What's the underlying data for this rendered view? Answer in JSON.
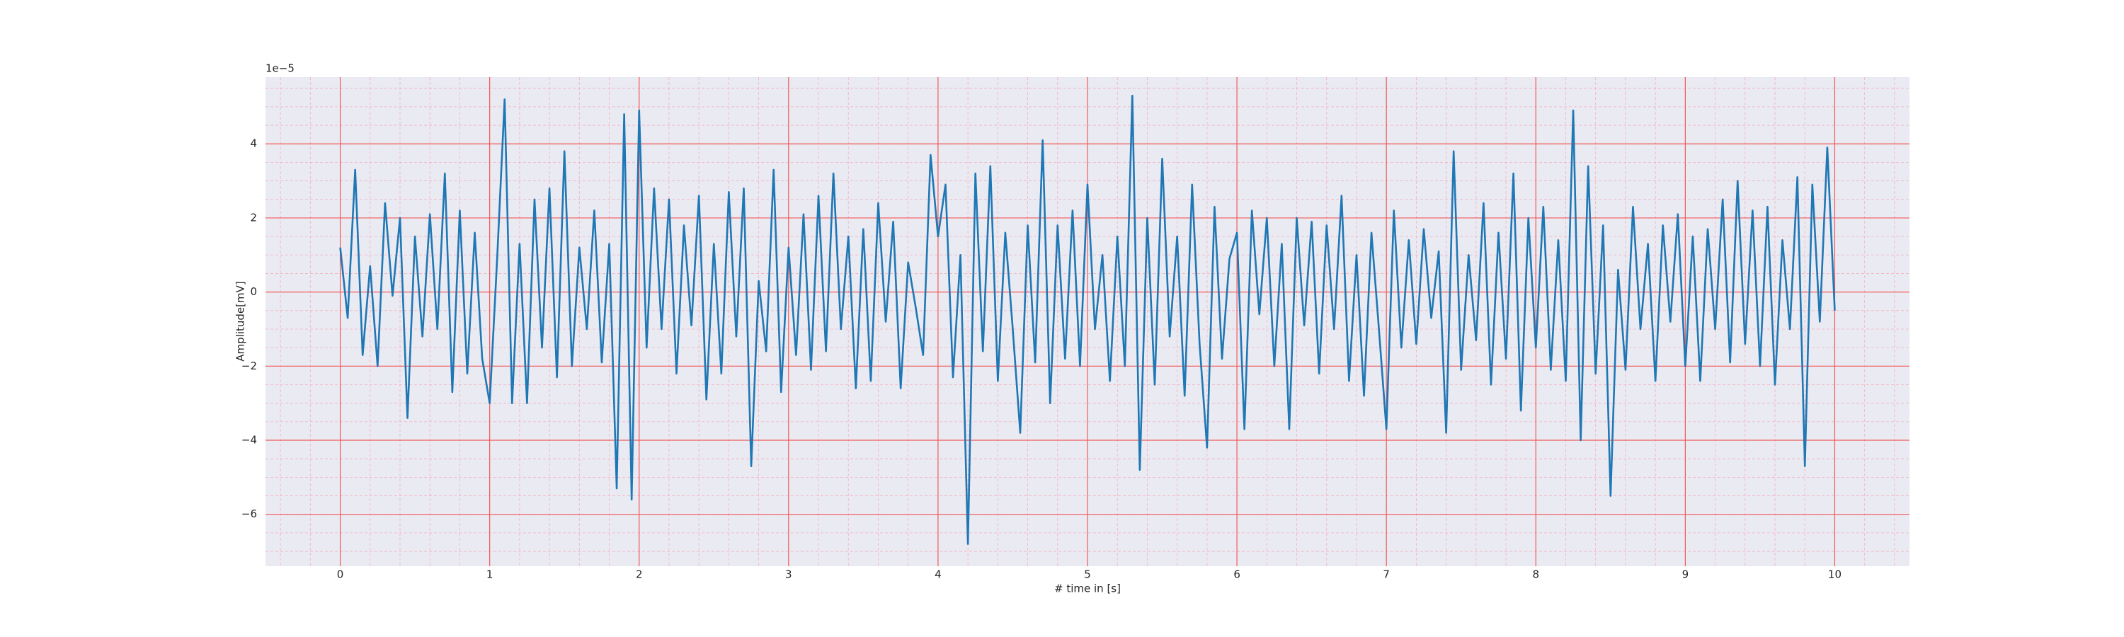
{
  "chart_data": {
    "type": "line",
    "xlabel": "# time in [s]",
    "ylabel": "Amplitude[mV]",
    "y_offset_text": "1e−5",
    "color": "#1f77b4",
    "grid": true,
    "minor_grid": true,
    "xlim": [
      -0.5,
      10.5
    ],
    "ylim": [
      -7.4,
      5.8
    ],
    "xticks": [
      0,
      1,
      2,
      3,
      4,
      5,
      6,
      7,
      8,
      9,
      10
    ],
    "yticks": [
      {
        "value": -6,
        "label": "−6"
      },
      {
        "value": -4,
        "label": "−4"
      },
      {
        "value": -2,
        "label": "−2"
      },
      0,
      2,
      4
    ],
    "x": [
      0,
      0.05,
      0.1,
      0.15,
      0.2,
      0.25,
      0.3,
      0.35,
      0.4,
      0.45,
      0.5,
      0.55,
      0.6,
      0.65,
      0.7,
      0.75,
      0.8,
      0.85,
      0.9,
      0.95,
      1,
      1.05,
      1.1,
      1.15,
      1.2,
      1.25,
      1.3,
      1.35,
      1.4,
      1.45,
      1.5,
      1.55,
      1.6,
      1.65,
      1.7,
      1.75,
      1.8,
      1.85,
      1.9,
      1.95,
      2,
      2.05,
      2.1,
      2.15,
      2.2,
      2.25,
      2.3,
      2.35,
      2.4,
      2.45,
      2.5,
      2.55,
      2.6,
      2.65,
      2.7,
      2.75,
      2.8,
      2.85,
      2.9,
      2.95,
      3,
      3.05,
      3.1,
      3.15,
      3.2,
      3.25,
      3.3,
      3.35,
      3.4,
      3.45,
      3.5,
      3.55,
      3.6,
      3.65,
      3.7,
      3.75,
      3.8,
      3.85,
      3.9,
      3.95,
      4,
      4.05,
      4.1,
      4.15,
      4.2,
      4.25,
      4.3,
      4.35,
      4.4,
      4.45,
      4.5,
      4.55,
      4.6,
      4.65,
      4.7,
      4.75,
      4.8,
      4.85,
      4.9,
      4.95,
      5,
      5.05,
      5.1,
      5.15,
      5.2,
      5.25,
      5.3,
      5.35,
      5.4,
      5.45,
      5.5,
      5.55,
      5.6,
      5.65,
      5.7,
      5.75,
      5.8,
      5.85,
      5.9,
      5.95,
      6,
      6.05,
      6.1,
      6.15,
      6.2,
      6.25,
      6.3,
      6.35,
      6.4,
      6.45,
      6.5,
      6.55,
      6.6,
      6.65,
      6.7,
      6.75,
      6.8,
      6.85,
      6.9,
      6.95,
      7,
      7.05,
      7.1,
      7.15,
      7.2,
      7.25,
      7.3,
      7.35,
      7.4,
      7.45,
      7.5,
      7.55,
      7.6,
      7.65,
      7.7,
      7.75,
      7.8,
      7.85,
      7.9,
      7.95,
      8,
      8.05,
      8.1,
      8.15,
      8.2,
      8.25,
      8.3,
      8.35,
      8.4,
      8.45,
      8.5,
      8.55,
      8.6,
      8.65,
      8.7,
      8.75,
      8.8,
      8.85,
      8.9,
      8.95,
      9,
      9.05,
      9.1,
      9.15,
      9.2,
      9.25,
      9.3,
      9.35,
      9.4,
      9.45,
      9.5,
      9.55,
      9.6,
      9.65,
      9.7,
      9.75,
      9.8,
      9.85,
      9.9,
      9.95,
      10
    ],
    "values": [
      1.2,
      -0.7,
      3.3,
      -1.7,
      0.7,
      -2.0,
      2.4,
      -0.1,
      2.0,
      -3.4,
      1.5,
      -1.2,
      2.1,
      -1.0,
      3.2,
      -2.7,
      2.2,
      -2.2,
      1.6,
      -1.8,
      -3.0,
      0.9,
      5.2,
      -3.0,
      1.3,
      -3.0,
      2.5,
      -1.5,
      2.8,
      -2.3,
      3.8,
      -2.0,
      1.2,
      -1.0,
      2.2,
      -1.9,
      1.3,
      -5.3,
      4.8,
      -5.6,
      4.9,
      -1.5,
      2.8,
      -1.0,
      2.5,
      -2.2,
      1.8,
      -0.9,
      2.6,
      -2.9,
      1.3,
      -2.2,
      2.7,
      -1.2,
      2.8,
      -4.7,
      0.3,
      -1.6,
      3.3,
      -2.7,
      1.2,
      -1.7,
      2.1,
      -2.1,
      2.6,
      -1.6,
      3.2,
      -1.0,
      1.5,
      -2.6,
      1.7,
      -2.4,
      2.4,
      -0.8,
      1.9,
      -2.6,
      0.8,
      -0.4,
      -1.7,
      3.7,
      1.5,
      2.9,
      -2.3,
      1.0,
      -6.8,
      3.2,
      -1.6,
      3.4,
      -2.4,
      1.6,
      -1.0,
      -3.8,
      1.8,
      -1.9,
      4.1,
      -3.0,
      1.8,
      -1.8,
      2.2,
      -2.0,
      2.9,
      -1.0,
      1.0,
      -2.4,
      1.5,
      -2.0,
      5.3,
      -4.8,
      2.0,
      -2.5,
      3.6,
      -1.2,
      1.5,
      -2.8,
      2.9,
      -1.4,
      -4.2,
      2.3,
      -1.8,
      0.9,
      1.6,
      -3.7,
      2.2,
      -0.6,
      2.0,
      -2.0,
      1.3,
      -3.7,
      2.0,
      -0.9,
      1.9,
      -2.2,
      1.8,
      -1.0,
      2.6,
      -2.4,
      1.0,
      -2.8,
      1.6,
      -1.0,
      -3.7,
      2.2,
      -1.5,
      1.4,
      -1.4,
      1.7,
      -0.7,
      1.1,
      -3.8,
      3.8,
      -2.1,
      1.0,
      -1.3,
      2.4,
      -2.5,
      1.6,
      -1.8,
      3.2,
      -3.2,
      2.0,
      -1.5,
      2.3,
      -2.1,
      1.4,
      -2.4,
      4.9,
      -4.0,
      3.4,
      -2.2,
      1.8,
      -5.5,
      0.6,
      -2.1,
      2.3,
      -1.0,
      1.3,
      -2.4,
      1.8,
      -0.8,
      2.1,
      -2.0,
      1.5,
      -2.4,
      1.7,
      -1.0,
      2.5,
      -1.9,
      3.0,
      -1.4,
      2.2,
      -2.0,
      2.3,
      -2.5,
      1.4,
      -1.0,
      3.1,
      -4.7,
      2.9,
      -0.8,
      3.9,
      -0.5
    ]
  }
}
